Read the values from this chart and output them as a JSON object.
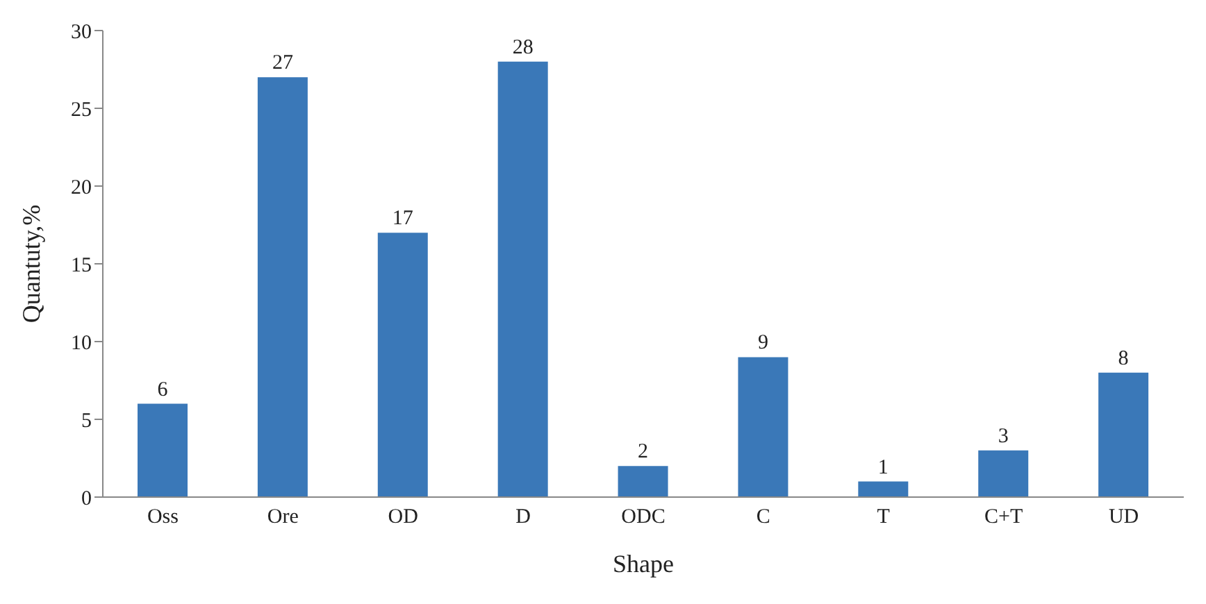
{
  "chart_data": {
    "type": "bar",
    "xlabel": "Shape",
    "ylabel": "Quantuty,%",
    "categories": [
      "Oss",
      "Ore",
      "OD",
      "D",
      "ODC",
      "C",
      "T",
      "C+T",
      "UD"
    ],
    "values": [
      6,
      27,
      17,
      28,
      2,
      9,
      1,
      3,
      8
    ],
    "color": "#3a78b8",
    "ylim": [
      0,
      30
    ],
    "yticks": [
      0,
      5,
      10,
      15,
      20,
      25,
      30
    ],
    "data_labels": true,
    "grid": false
  }
}
